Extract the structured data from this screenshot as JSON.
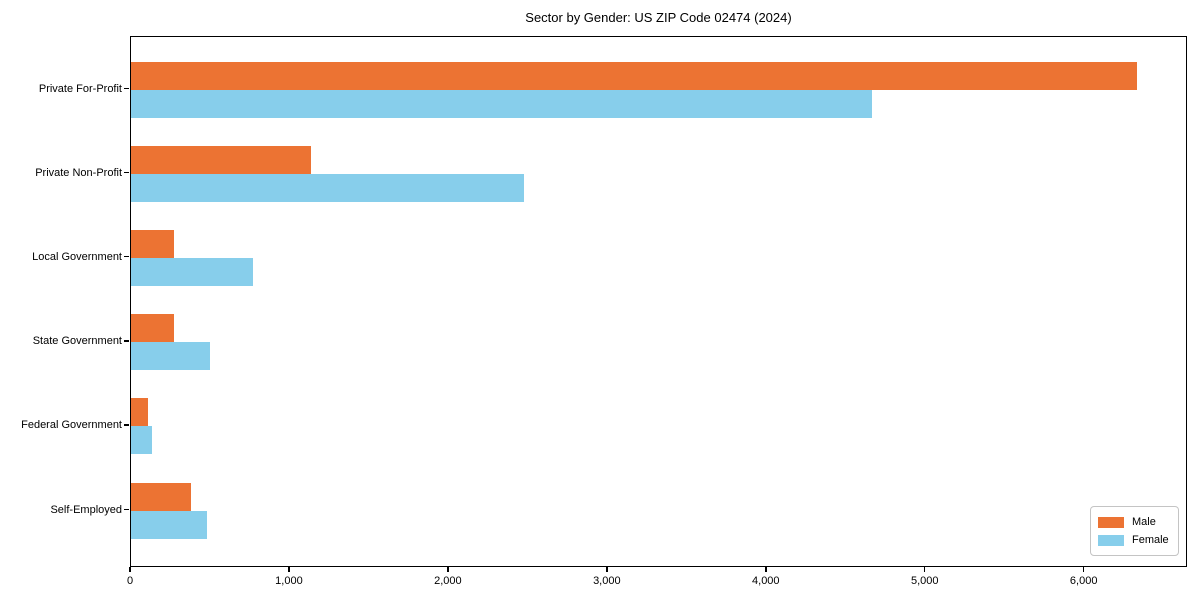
{
  "title": "Sector by Gender: US ZIP Code 02474 (2024)",
  "chart_data": {
    "type": "bar",
    "orientation": "horizontal",
    "title": "Sector by Gender: US ZIP Code 02474 (2024)",
    "categories": [
      "Private For-Profit",
      "Private Non-Profit",
      "Local Government",
      "State Government",
      "Federal Government",
      "Self-Employed"
    ],
    "series": [
      {
        "name": "Male",
        "color": "#EC7333",
        "values": [
          6330,
          1130,
          270,
          270,
          107,
          376
        ]
      },
      {
        "name": "Female",
        "color": "#87CEEB",
        "values": [
          4660,
          2470,
          765,
          500,
          134,
          477
        ]
      }
    ],
    "xlabel": "",
    "ylabel": "",
    "xlim": [
      0,
      6650
    ],
    "x_ticks": [
      0,
      1000,
      2000,
      3000,
      4000,
      5000,
      6000
    ],
    "x_tick_labels": [
      "0",
      "1,000",
      "2,000",
      "3,000",
      "4,000",
      "5,000",
      "6,000"
    ],
    "grid": false,
    "legend_position": "lower right"
  },
  "legend": {
    "items": [
      {
        "label": "Male",
        "color": "#EC7333"
      },
      {
        "label": "Female",
        "color": "#87CEEB"
      }
    ]
  }
}
